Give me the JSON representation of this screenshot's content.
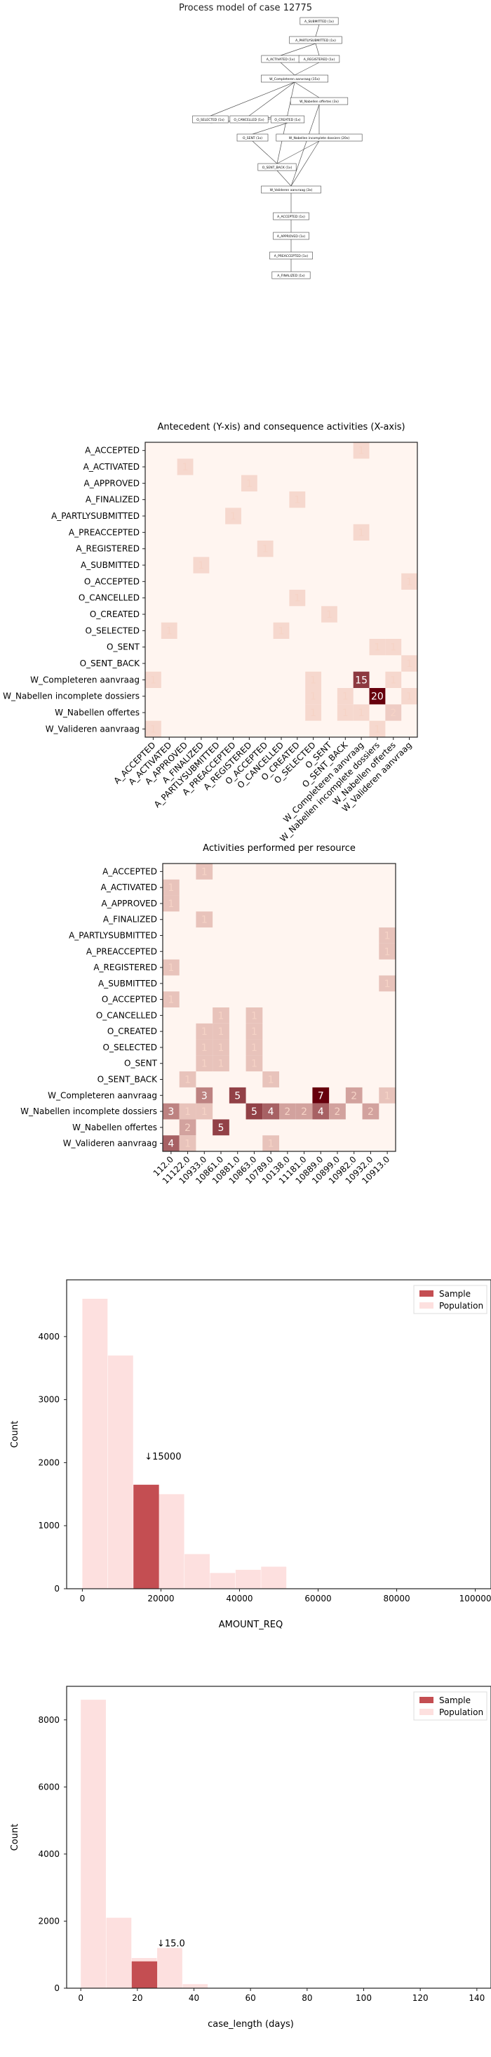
{
  "process_model": {
    "title": "Process model of case 12775",
    "nodes": [
      "A_SUBMITTED (1x)",
      "A_PARTLYSUBMITTED (1x)",
      "A_ACTIVATED (1x)",
      "A_REGISTERED (1x)",
      "W_Completeren aanvraag (15x)",
      "W_Nabellen offertes (3x)",
      "O_SELECTED (1x)",
      "O_CANCELLED (1x)",
      "O_CREATED (1x)",
      "O_SENT (1x)",
      "W_Nabellen incomplete dossiers (20x)",
      "O_SENT_BACK (1x)",
      "W_Valideren aanvraag (3x)",
      "A_ACCEPTED (1x)",
      "A_APPROVED (1x)",
      "A_PREACCEPTED (1x)",
      "A_FINALIZED (1x)"
    ]
  },
  "chart_data": [
    {
      "type": "heatmap",
      "title": "Antecedent (Y-xis) and consequence activities (X-axis)",
      "rows": [
        "A_ACCEPTED",
        "A_ACTIVATED",
        "A_APPROVED",
        "A_FINALIZED",
        "A_PARTLYSUBMITTED",
        "A_PREACCEPTED",
        "A_REGISTERED",
        "A_SUBMITTED",
        "O_ACCEPTED",
        "O_CANCELLED",
        "O_CREATED",
        "O_SELECTED",
        "O_SENT",
        "O_SENT_BACK",
        "W_Completeren aanvraag",
        "W_Nabellen incomplete dossiers",
        "W_Nabellen offertes",
        "W_Valideren aanvraag"
      ],
      "columns": [
        "A_ACCEPTED",
        "A_ACTIVATED",
        "A_APPROVED",
        "A_FINALIZED",
        "A_PARTLYSUBMITTED",
        "A_PREACCEPTED",
        "A_REGISTERED",
        "O_ACCEPTED",
        "O_CANCELLED",
        "O_CREATED",
        "O_SELECTED",
        "O_SENT",
        "O_SENT_BACK",
        "W_Completeren aanvraag",
        "W_Nabellen incomplete dossiers",
        "W_Nabellen offertes",
        "W_Valideren aanvraag"
      ],
      "cells": [
        [
          0,
          13,
          1
        ],
        [
          1,
          2,
          1
        ],
        [
          2,
          6,
          1
        ],
        [
          3,
          9,
          1
        ],
        [
          4,
          5,
          1
        ],
        [
          5,
          13,
          1
        ],
        [
          6,
          7,
          1
        ],
        [
          7,
          3,
          1
        ],
        [
          8,
          16,
          1
        ],
        [
          9,
          9,
          1
        ],
        [
          10,
          11,
          1
        ],
        [
          11,
          8,
          1
        ],
        [
          11,
          1,
          1
        ],
        [
          12,
          14,
          1
        ],
        [
          12,
          15,
          1
        ],
        [
          13,
          16,
          1
        ],
        [
          14,
          0,
          1
        ],
        [
          14,
          10,
          1
        ],
        [
          14,
          13,
          15
        ],
        [
          14,
          15,
          1
        ],
        [
          15,
          10,
          1
        ],
        [
          15,
          12,
          1
        ],
        [
          15,
          14,
          20
        ],
        [
          15,
          16,
          1
        ],
        [
          16,
          10,
          1
        ],
        [
          16,
          12,
          1
        ],
        [
          16,
          13,
          1
        ],
        [
          16,
          15,
          2
        ],
        [
          17,
          0,
          1
        ],
        [
          17,
          14,
          1
        ]
      ],
      "color_scale": [
        "#fff5f0",
        "#67000d"
      ],
      "max_value": 20
    },
    {
      "type": "heatmap",
      "title": "Activities performed per resource",
      "rows": [
        "A_ACCEPTED",
        "A_ACTIVATED",
        "A_APPROVED",
        "A_FINALIZED",
        "A_PARTLYSUBMITTED",
        "A_PREACCEPTED",
        "A_REGISTERED",
        "A_SUBMITTED",
        "O_ACCEPTED",
        "O_CANCELLED",
        "O_CREATED",
        "O_SELECTED",
        "O_SENT",
        "O_SENT_BACK",
        "W_Completeren aanvraag",
        "W_Nabellen incomplete dossiers",
        "W_Nabellen offertes",
        "W_Valideren aanvraag"
      ],
      "columns": [
        "112.0",
        "11122.0",
        "10933.0",
        "10861.0",
        "10881.0",
        "10863.0",
        "10789.0",
        "10138.0",
        "11181.0",
        "10889.0",
        "10899.0",
        "10982.0",
        "10932.0",
        "10913.0"
      ],
      "cells": [
        [
          0,
          2,
          1
        ],
        [
          1,
          0,
          1
        ],
        [
          2,
          0,
          1
        ],
        [
          3,
          2,
          1
        ],
        [
          4,
          13,
          1
        ],
        [
          5,
          13,
          1
        ],
        [
          6,
          0,
          1
        ],
        [
          7,
          13,
          1
        ],
        [
          8,
          0,
          1
        ],
        [
          9,
          3,
          1
        ],
        [
          9,
          5,
          1
        ],
        [
          10,
          2,
          1
        ],
        [
          10,
          3,
          1
        ],
        [
          10,
          5,
          1
        ],
        [
          11,
          2,
          1
        ],
        [
          11,
          3,
          1
        ],
        [
          11,
          5,
          1
        ],
        [
          12,
          2,
          1
        ],
        [
          12,
          3,
          1
        ],
        [
          12,
          5,
          1
        ],
        [
          13,
          1,
          1
        ],
        [
          13,
          6,
          1
        ],
        [
          14,
          2,
          3
        ],
        [
          14,
          4,
          5
        ],
        [
          14,
          9,
          7
        ],
        [
          14,
          11,
          2
        ],
        [
          14,
          13,
          1
        ],
        [
          15,
          0,
          3
        ],
        [
          15,
          1,
          1
        ],
        [
          15,
          2,
          1
        ],
        [
          15,
          5,
          5
        ],
        [
          15,
          6,
          4
        ],
        [
          15,
          7,
          2
        ],
        [
          15,
          8,
          2
        ],
        [
          15,
          9,
          4
        ],
        [
          15,
          10,
          2
        ],
        [
          15,
          12,
          2
        ],
        [
          16,
          1,
          2
        ],
        [
          16,
          3,
          5
        ],
        [
          17,
          0,
          4
        ],
        [
          17,
          1,
          1
        ],
        [
          17,
          6,
          1
        ]
      ],
      "color_scale": [
        "#fff5f0",
        "#67000d"
      ],
      "max_value": 7
    },
    {
      "type": "bar",
      "title": "",
      "xlabel": "AMOUNT_REQ",
      "ylabel": "Count",
      "xlim": [
        -4000,
        104000
      ],
      "ylim": [
        0,
        4900
      ],
      "xticks": [
        0,
        20000,
        40000,
        60000,
        80000,
        100000
      ],
      "yticks": [
        0,
        1000,
        2000,
        3000,
        4000
      ],
      "bin_width": 6500,
      "legend": [
        "Sample",
        "Population"
      ],
      "legend_position": "top-right",
      "series": [
        {
          "name": "Population",
          "bins_start": [
            0,
            6500,
            13000,
            19500,
            26000,
            32500,
            39000,
            45500
          ],
          "values": [
            4600,
            3700,
            1400,
            1500,
            550,
            250,
            300,
            350
          ]
        },
        {
          "name": "Sample",
          "bins_start": [
            13000
          ],
          "values": [
            1650
          ]
        }
      ],
      "annotation": {
        "text": "↓15000",
        "x": 13000,
        "y": 2050
      }
    },
    {
      "type": "bar",
      "title": "",
      "xlabel": "case_length (days)",
      "ylabel": "Count",
      "xlim": [
        -5,
        145
      ],
      "ylim": [
        0,
        9000
      ],
      "xticks": [
        0,
        20,
        40,
        60,
        80,
        100,
        120,
        140
      ],
      "yticks": [
        0,
        2000,
        4000,
        6000,
        8000
      ],
      "bin_width": 9,
      "legend": [
        "Sample",
        "Population"
      ],
      "legend_position": "top-right",
      "series": [
        {
          "name": "Population",
          "bins_start": [
            0,
            9,
            18,
            27,
            36
          ],
          "values": [
            8600,
            2100,
            900,
            1200,
            120
          ]
        },
        {
          "name": "Sample",
          "bins_start": [
            18
          ],
          "values": [
            800
          ]
        }
      ],
      "annotation": {
        "text": "↓15.0",
        "x": 23,
        "y": 1250
      }
    }
  ],
  "colors": {
    "sample": "#c44e52",
    "population": "#fde0df",
    "axis": "#222222"
  }
}
